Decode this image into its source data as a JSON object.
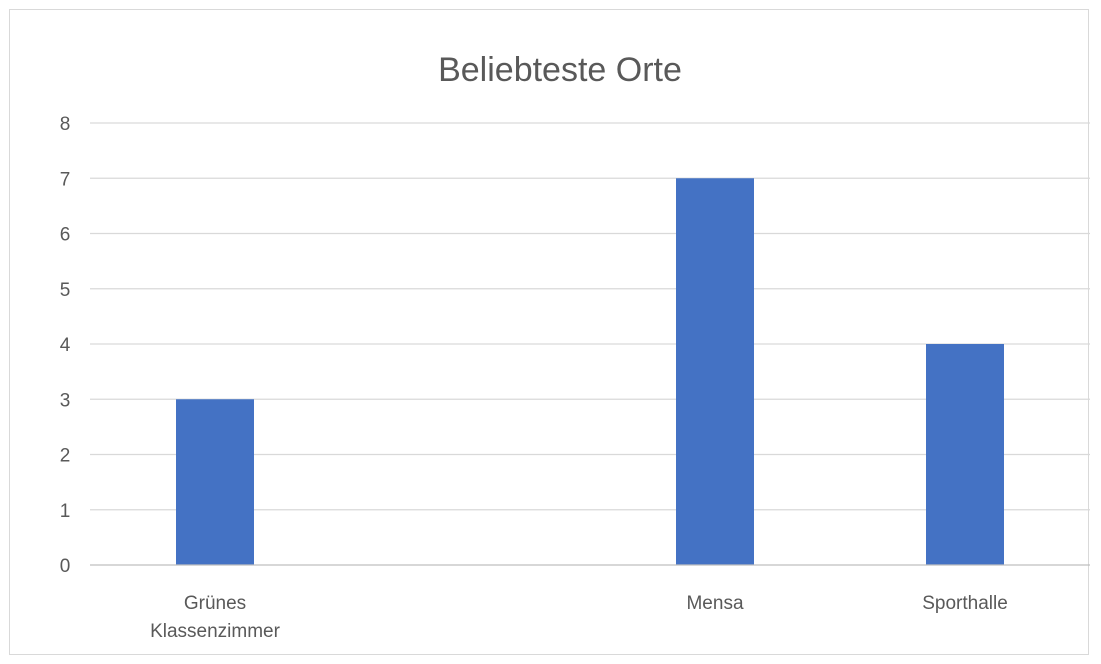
{
  "chart_data": {
    "type": "bar",
    "title": "Beliebteste Orte",
    "categories": [
      [
        "Grünes",
        "Klassenzimmer"
      ],
      [
        "",
        ""
      ],
      [
        "Mensa"
      ],
      [
        "Sporthalle"
      ]
    ],
    "values": [
      3,
      null,
      7,
      4
    ],
    "xlabel": "",
    "ylabel": "",
    "ylim": [
      0,
      8
    ],
    "yticks": [
      "0",
      "1",
      "2",
      "3",
      "4",
      "5",
      "6",
      "7",
      "8"
    ],
    "grid": true,
    "legend": "none",
    "colors": {
      "bar": "#4472C4"
    }
  }
}
